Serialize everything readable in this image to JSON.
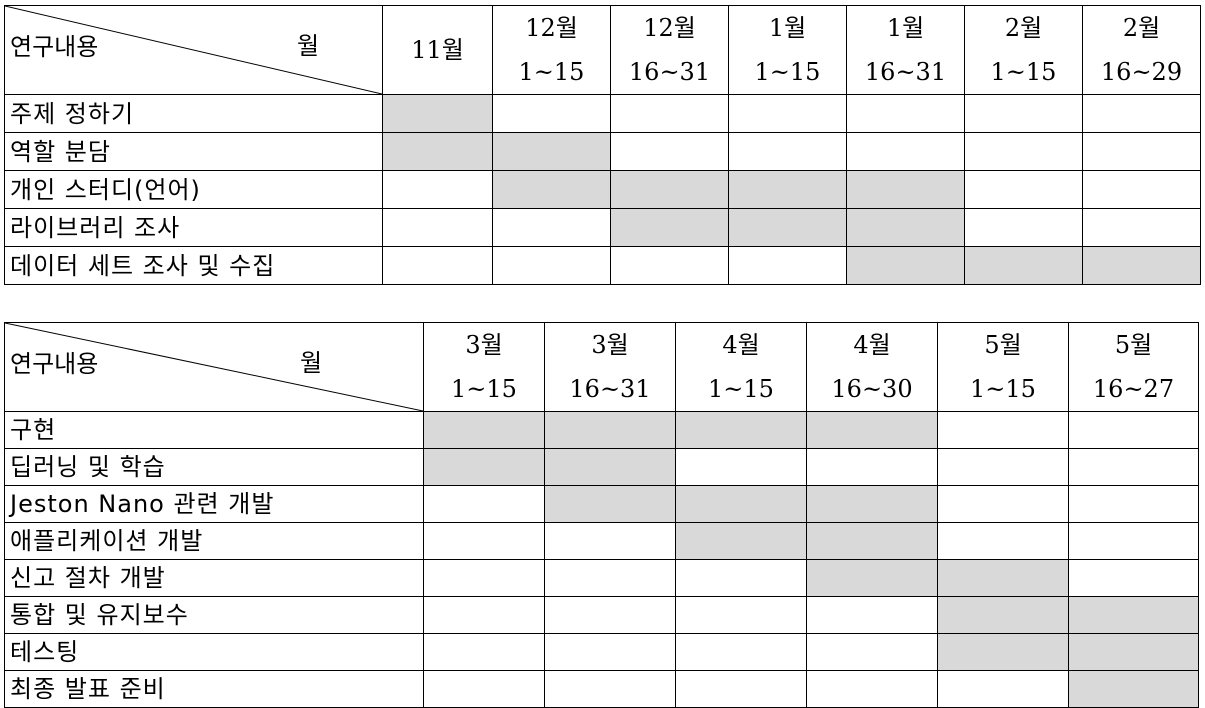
{
  "corner": {
    "task_label": "연구내용",
    "month_label": "월"
  },
  "colors": {
    "filled": "#d9d9d9",
    "empty": "#ffffff",
    "border": "#000000"
  },
  "table1": {
    "columns": [
      {
        "month": "11월",
        "range": ""
      },
      {
        "month": "12월",
        "range": "1~15"
      },
      {
        "month": "12월",
        "range": "16~31"
      },
      {
        "month": "1월",
        "range": "1~15"
      },
      {
        "month": "1월",
        "range": "16~31"
      },
      {
        "month": "2월",
        "range": "1~15"
      },
      {
        "month": "2월",
        "range": "16~29"
      }
    ],
    "rows": [
      {
        "task": "주제 정하기",
        "cells": [
          1,
          0,
          0,
          0,
          0,
          0,
          0
        ]
      },
      {
        "task": "역할 분담",
        "cells": [
          1,
          1,
          0,
          0,
          0,
          0,
          0
        ]
      },
      {
        "task": "개인 스터디(언어)",
        "cells": [
          0,
          1,
          1,
          1,
          1,
          0,
          0
        ]
      },
      {
        "task": "라이브러리 조사",
        "cells": [
          0,
          0,
          1,
          1,
          1,
          0,
          0
        ]
      },
      {
        "task": "데이터 세트 조사 및 수집",
        "cells": [
          0,
          0,
          0,
          0,
          1,
          1,
          1
        ]
      }
    ]
  },
  "table2": {
    "columns": [
      {
        "month": "3월",
        "range": "1~15"
      },
      {
        "month": "3월",
        "range": "16~31"
      },
      {
        "month": "4월",
        "range": "1~15"
      },
      {
        "month": "4월",
        "range": "16~30"
      },
      {
        "month": "5월",
        "range": "1~15"
      },
      {
        "month": "5월",
        "range": "16~27"
      }
    ],
    "rows": [
      {
        "task": "구현",
        "cells": [
          1,
          1,
          1,
          1,
          0,
          0
        ]
      },
      {
        "task": "딥러닝 및 학습",
        "cells": [
          1,
          1,
          0,
          0,
          0,
          0
        ]
      },
      {
        "task": "Jeston Nano 관련 개발",
        "cells": [
          0,
          1,
          1,
          1,
          0,
          0
        ]
      },
      {
        "task": "애플리케이션 개발",
        "cells": [
          0,
          0,
          1,
          1,
          0,
          0
        ]
      },
      {
        "task": "신고 절차 개발",
        "cells": [
          0,
          0,
          0,
          1,
          1,
          0
        ]
      },
      {
        "task": "통합 및 유지보수",
        "cells": [
          0,
          0,
          0,
          0,
          1,
          1
        ]
      },
      {
        "task": "테스팅",
        "cells": [
          0,
          0,
          0,
          0,
          1,
          1
        ]
      },
      {
        "task": "최종 발표 준비",
        "cells": [
          0,
          0,
          0,
          0,
          0,
          1
        ]
      }
    ]
  }
}
